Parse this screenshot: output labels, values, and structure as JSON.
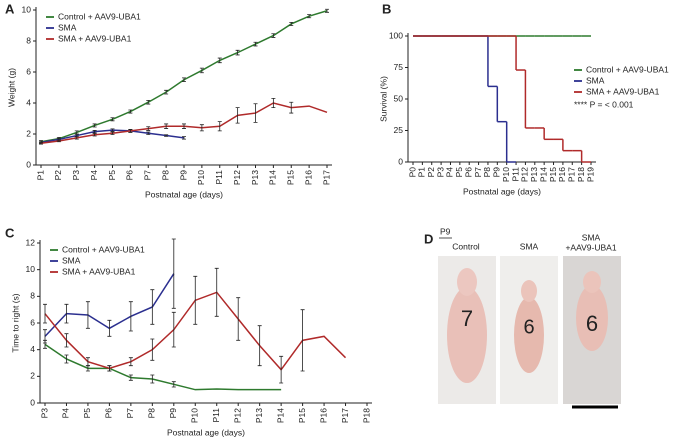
{
  "chart_data": [
    {
      "type": "line",
      "panel": "A",
      "y_label": "Weight (g)",
      "x_label": "Postnatal age (days)",
      "legend": "upper left",
      "categories": [
        "P1",
        "P2",
        "P3",
        "P4",
        "P5",
        "P6",
        "P7",
        "P8",
        "P9",
        "P10",
        "P11",
        "P12",
        "P13",
        "P14",
        "P15",
        "P16",
        "P17"
      ],
      "ylim": [
        0,
        10
      ],
      "yticks": [
        0,
        2,
        4,
        6,
        8,
        10
      ],
      "series": [
        {
          "name": "Control + AAV9-UBA1",
          "color": "#2e7a2e",
          "values": [
            1.5,
            1.7,
            2.1,
            2.55,
            2.95,
            3.45,
            4.05,
            4.7,
            5.5,
            6.1,
            6.75,
            7.25,
            7.8,
            8.35,
            9.1,
            9.6,
            9.95
          ],
          "errors": [
            0.08,
            0.08,
            0.1,
            0.1,
            0.1,
            0.1,
            0.12,
            0.12,
            0.12,
            0.15,
            0.15,
            0.15,
            0.12,
            0.12,
            0.1,
            0.1,
            0.1
          ]
        },
        {
          "name": "SMA",
          "color": "#2b2f8f",
          "values": [
            1.45,
            1.65,
            1.9,
            2.15,
            2.25,
            2.2,
            2.05,
            1.9,
            1.75,
            null,
            null,
            null,
            null,
            null,
            null,
            null,
            null
          ],
          "errors": [
            0.05,
            0.05,
            0.08,
            0.08,
            0.08,
            0.08,
            0.08,
            0.05,
            0.08,
            null,
            null,
            null,
            null,
            null,
            null,
            null,
            null
          ]
        },
        {
          "name": "SMA + AAV9-UBA1",
          "color": "#b02a2a",
          "values": [
            1.4,
            1.55,
            1.75,
            1.95,
            2.05,
            2.2,
            2.35,
            2.5,
            2.5,
            2.4,
            2.5,
            3.2,
            3.35,
            4.0,
            3.7,
            3.8,
            3.4
          ],
          "errors": [
            0.05,
            0.05,
            0.08,
            0.08,
            0.08,
            0.1,
            0.12,
            0.15,
            0.15,
            0.2,
            0.3,
            0.5,
            0.6,
            0.3,
            0.35,
            null,
            null
          ]
        }
      ]
    },
    {
      "type": "step",
      "panel": "B",
      "y_label": "Survival (%)",
      "x_label": "Postnatal age (days)",
      "legend": "right",
      "annotation": "**** P = < 0.001",
      "categories": [
        "P0",
        "P1",
        "P2",
        "P3",
        "P4",
        "P5",
        "P6",
        "P7",
        "P8",
        "P9",
        "P10",
        "P11",
        "P12",
        "P13",
        "P14",
        "P15",
        "P16",
        "P17",
        "P18",
        "P19"
      ],
      "ylim": [
        0,
        100
      ],
      "yticks": [
        0,
        25,
        50,
        75,
        100
      ],
      "series": [
        {
          "name": "Control + AAV9-UBA1",
          "color": "#2e7a2e",
          "values": [
            100,
            100,
            100,
            100,
            100,
            100,
            100,
            100,
            100,
            100,
            100,
            100,
            100,
            100,
            100,
            100,
            100,
            100,
            100,
            null
          ]
        },
        {
          "name": "SMA",
          "color": "#2b2f8f",
          "values": [
            100,
            100,
            100,
            100,
            100,
            100,
            100,
            100,
            60,
            32,
            0,
            null,
            null,
            null,
            null,
            null,
            null,
            null,
            null,
            null
          ]
        },
        {
          "name": "SMA + AAV9-UBA1",
          "color": "#b02a2a",
          "values": [
            100,
            100,
            100,
            100,
            100,
            100,
            100,
            100,
            100,
            100,
            100,
            73,
            27,
            27,
            18,
            18,
            9,
            9,
            0,
            null
          ]
        }
      ]
    },
    {
      "type": "line",
      "panel": "C",
      "y_label": "Time to right (s)",
      "x_label": "Postnatal age (days)",
      "legend": "upper left",
      "categories": [
        "P3",
        "P4",
        "P5",
        "P6",
        "P7",
        "P8",
        "P9",
        "P10",
        "P11",
        "P12",
        "P13",
        "P14",
        "P15",
        "P16",
        "P17",
        "P18"
      ],
      "ylim": [
        0,
        12
      ],
      "yticks": [
        0,
        2,
        4,
        6,
        8,
        10,
        12
      ],
      "series": [
        {
          "name": "Control + AAV9-UBA1",
          "color": "#2e7a2e",
          "values": [
            4.4,
            3.3,
            2.6,
            2.6,
            1.9,
            1.8,
            1.4,
            1.0,
            1.05,
            1.0,
            1.0,
            1.0,
            null,
            null,
            null,
            null
          ],
          "errors": [
            0.3,
            0.3,
            0.2,
            0.2,
            0.2,
            0.3,
            0.2,
            null,
            null,
            null,
            null,
            null,
            null,
            null,
            null,
            null
          ]
        },
        {
          "name": "SMA",
          "color": "#2b2f8f",
          "values": [
            5.0,
            6.7,
            6.6,
            5.6,
            6.5,
            7.2,
            9.7,
            null,
            null,
            null,
            null,
            null,
            null,
            null,
            null,
            null
          ],
          "errors": [
            0.5,
            0.7,
            1.0,
            0.6,
            1.1,
            1.3,
            2.6,
            null,
            null,
            null,
            null,
            null,
            null,
            null,
            null,
            null
          ]
        },
        {
          "name": "SMA + AAV9-UBA1",
          "color": "#b02a2a",
          "values": [
            6.7,
            4.7,
            3.1,
            2.6,
            3.1,
            4.0,
            5.5,
            7.7,
            8.3,
            6.3,
            4.3,
            2.5,
            4.7,
            5.0,
            3.4,
            null
          ],
          "errors": [
            0.7,
            0.5,
            0.3,
            0.2,
            0.3,
            0.8,
            1.3,
            1.8,
            1.8,
            1.6,
            1.5,
            1.0,
            2.3,
            null,
            null,
            null
          ]
        }
      ]
    }
  ],
  "photo_panel": {
    "panel": "D",
    "age": "P9",
    "labels": [
      "Control",
      "SMA",
      "SMA",
      "+AAV9-UBA1"
    ],
    "mouse_marks": [
      "7",
      "6",
      "6"
    ]
  }
}
